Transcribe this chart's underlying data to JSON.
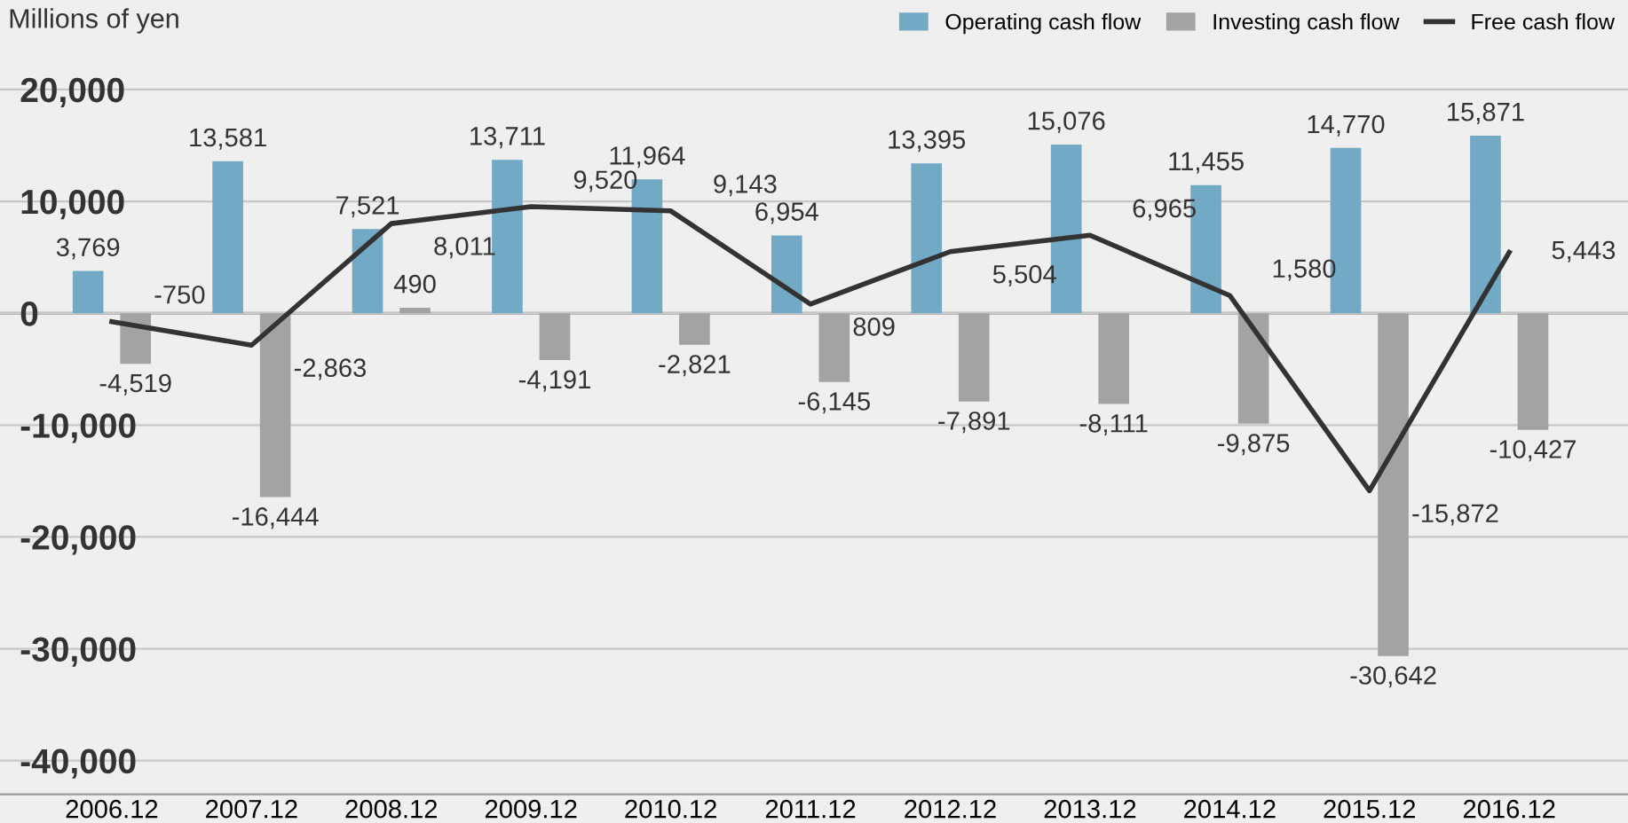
{
  "chart_data": {
    "type": "bar",
    "ylabel": "Millions of yen",
    "categories": [
      "2006.12",
      "2007.12",
      "2008.12",
      "2009.12",
      "2010.12",
      "2011.12",
      "2012.12",
      "2013.12",
      "2014.12",
      "2015.12",
      "2016.12"
    ],
    "series": [
      {
        "name": "Operating cash flow",
        "color": "#72a9c4",
        "values": [
          3769,
          13581,
          7521,
          13711,
          11964,
          6954,
          13395,
          15076,
          11455,
          14770,
          15871
        ],
        "value_labels": [
          "3,769",
          "13,581",
          "7,521",
          "13,711",
          "11,964",
          "6,954",
          "13,395",
          "15,076",
          "11,455",
          "14,770",
          "15,871"
        ]
      },
      {
        "name": "Investing cash flow",
        "color": "#a3a3a3",
        "values": [
          -4519,
          -16444,
          490,
          -4191,
          -2821,
          -6145,
          -7891,
          -8111,
          -9875,
          -30642,
          -10427
        ],
        "value_labels": [
          "-4,519",
          "-16,444",
          "490",
          "-4,191",
          "-2,821",
          "-6,145",
          "-7,891",
          "-8,111",
          "-9,875",
          "-30,642",
          "-10,427"
        ]
      },
      {
        "name": "Free cash flow",
        "type": "line",
        "color": "#333333",
        "values": [
          -750,
          -2863,
          8011,
          9520,
          9143,
          809,
          5504,
          6965,
          1580,
          -15872,
          5443
        ],
        "value_labels": [
          "-750",
          "-2,863",
          "8,011",
          "9,520",
          "9,143",
          "809",
          "5,504",
          "6,965",
          "1,580",
          "-15,872",
          "5,443"
        ]
      }
    ],
    "ylim": [
      -43000,
      28000
    ],
    "yticks": [
      {
        "value": -40000,
        "label": "-40,000"
      },
      {
        "value": -30000,
        "label": "-30,000"
      },
      {
        "value": -20000,
        "label": "-20,000"
      },
      {
        "value": -10000,
        "label": "-10,000"
      },
      0,
      {
        "value": 10000,
        "label": "10,000"
      },
      {
        "value": 20000,
        "label": "20,000"
      }
    ],
    "grid": "y",
    "legend": "top right",
    "marker": "none",
    "line_style": "solid"
  }
}
